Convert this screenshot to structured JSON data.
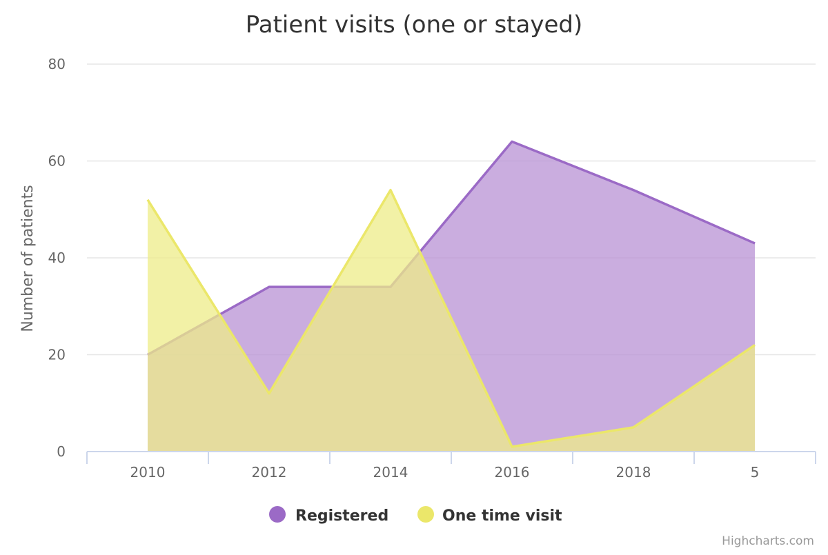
{
  "chart_data": {
    "type": "area",
    "title": "Patient visits (one or stayed)",
    "xlabel": "",
    "ylabel": "Number of patients",
    "categories": [
      "2010",
      "2012",
      "2014",
      "2016",
      "2018",
      "5"
    ],
    "ylim": [
      0,
      80
    ],
    "yticks": [
      0,
      20,
      40,
      60,
      80
    ],
    "grid": true,
    "legend_position": "bottom-center",
    "series": [
      {
        "name": "Registered",
        "values": [
          20,
          34,
          34,
          64,
          54,
          43
        ],
        "color": "#9b6ac6",
        "fill": "#b892d4"
      },
      {
        "name": "One time visit",
        "values": [
          52,
          12,
          54,
          1,
          5,
          22
        ],
        "color": "#ebe76a",
        "fill": "#eeec88"
      }
    ]
  },
  "credits": "Highcharts.com"
}
